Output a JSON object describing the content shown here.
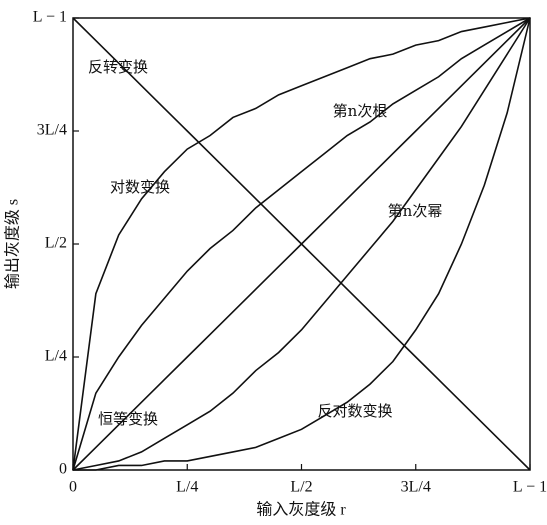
{
  "chart_data": {
    "type": "line",
    "xlabel": "输入灰度级 r",
    "ylabel": "输出灰度级 s",
    "x": [
      0,
      0.05,
      0.1,
      0.15,
      0.2,
      0.25,
      0.3,
      0.35,
      0.4,
      0.45,
      0.5,
      0.55,
      0.6,
      0.65,
      0.7,
      0.75,
      0.8,
      0.85,
      0.9,
      0.95,
      1
    ],
    "xlim": [
      0,
      1
    ],
    "ylim": [
      0,
      1
    ],
    "xticks": [
      0,
      {
        "value": 0.25,
        "label": "L/4"
      },
      {
        "value": 0.5,
        "label": "L/2"
      },
      {
        "value": 0.75,
        "label": "3L/4"
      },
      {
        "value": 1,
        "label": "L − 1"
      }
    ],
    "yticks": [
      0,
      {
        "value": 0.25,
        "label": "L/4"
      },
      {
        "value": 0.5,
        "label": "L/2"
      },
      {
        "value": 0.75,
        "label": "3L/4"
      },
      {
        "value": 1,
        "label": "L − 1"
      }
    ],
    "series": [
      {
        "name": "反转变换",
        "color": "#111111",
        "values": [
          1,
          0.95,
          0.9,
          0.85,
          0.8,
          0.75,
          0.7,
          0.65,
          0.6,
          0.55,
          0.5,
          0.45,
          0.4,
          0.35,
          0.3,
          0.25,
          0.2,
          0.15,
          0.1,
          0.05,
          0
        ]
      },
      {
        "name": "对数变换",
        "color": "#111111",
        "values": [
          0,
          0.39,
          0.52,
          0.6,
          0.66,
          0.71,
          0.74,
          0.78,
          0.8,
          0.83,
          0.85,
          0.87,
          0.89,
          0.91,
          0.92,
          0.94,
          0.95,
          0.97,
          0.98,
          0.99,
          1
        ]
      },
      {
        "name": "第n次根",
        "color": "#111111",
        "values": [
          0,
          0.17,
          0.25,
          0.32,
          0.38,
          0.44,
          0.49,
          0.53,
          0.58,
          0.62,
          0.66,
          0.7,
          0.74,
          0.77,
          0.81,
          0.84,
          0.87,
          0.91,
          0.94,
          0.97,
          1
        ]
      },
      {
        "name": "第n次幂",
        "color": "#111111",
        "values": [
          0,
          0.01,
          0.02,
          0.04,
          0.07,
          0.1,
          0.13,
          0.17,
          0.22,
          0.26,
          0.31,
          0.37,
          0.43,
          0.49,
          0.55,
          0.62,
          0.69,
          0.76,
          0.84,
          0.92,
          1
        ]
      },
      {
        "name": "恒等变换",
        "color": "#111111",
        "values": [
          0,
          0.05,
          0.1,
          0.15,
          0.2,
          0.25,
          0.3,
          0.35,
          0.4,
          0.45,
          0.5,
          0.55,
          0.6,
          0.65,
          0.7,
          0.75,
          0.8,
          0.85,
          0.9,
          0.95,
          1
        ]
      },
      {
        "name": "反对数变换",
        "color": "#111111",
        "values": [
          0,
          0,
          0.01,
          0.01,
          0.02,
          0.02,
          0.03,
          0.04,
          0.05,
          0.07,
          0.09,
          0.12,
          0.15,
          0.19,
          0.24,
          0.31,
          0.39,
          0.5,
          0.63,
          0.79,
          1
        ]
      }
    ]
  }
}
